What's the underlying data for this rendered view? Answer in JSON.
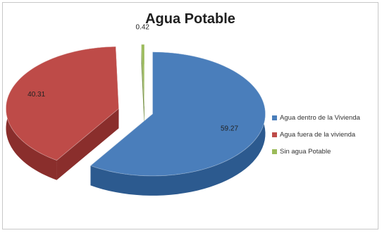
{
  "chart_data": {
    "type": "pie",
    "title": "Agua Potable",
    "slices": [
      {
        "label": "Agua dentro de la Vivienda",
        "value": 59.27,
        "data_label": "59.27",
        "color": "#4a7ebb",
        "side": "#2c5a8f"
      },
      {
        "label": "Agua fuera de la vivienda",
        "value": 40.31,
        "data_label": "40.31",
        "color": "#be4b48",
        "side": "#8a2e2c"
      },
      {
        "label": "Sin agua Potable",
        "value": 0.42,
        "data_label": "0.42",
        "color": "#9bbb59",
        "side": "#6f8a3c"
      }
    ],
    "legend_position": "right",
    "exploded": true,
    "three_d": true
  }
}
